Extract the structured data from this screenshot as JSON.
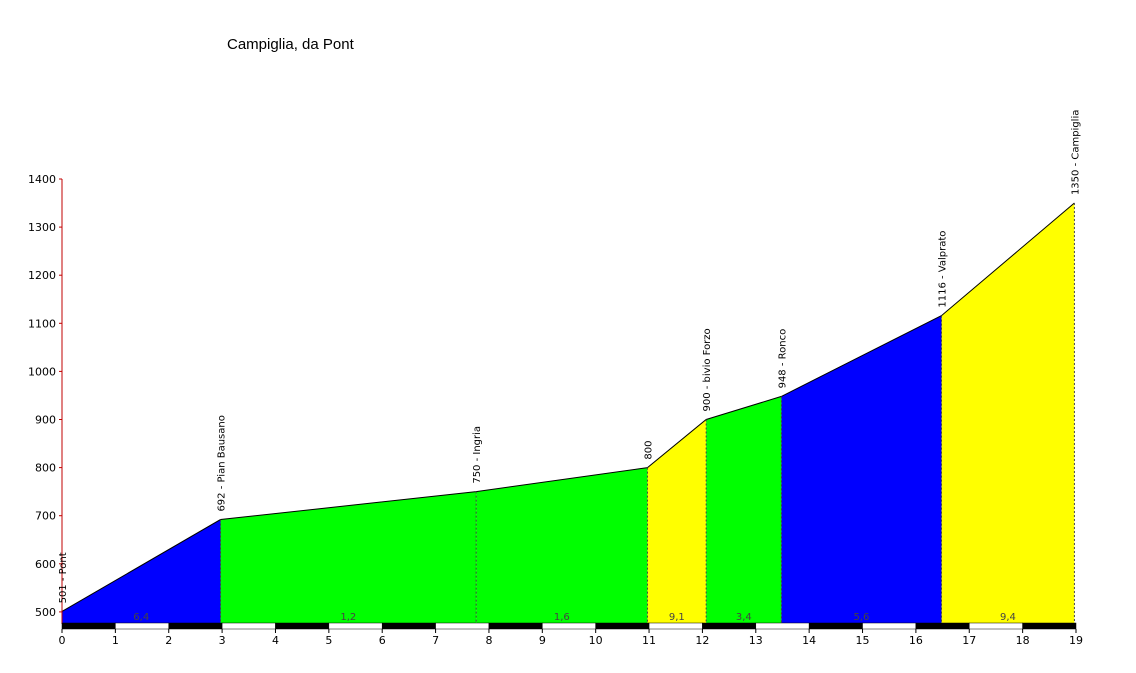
{
  "chart_data": {
    "type": "area",
    "title": "Campiglia, da Pont",
    "xlabel": "",
    "ylabel": "",
    "xlim": [
      0,
      19
    ],
    "ylim": [
      475,
      1400
    ],
    "x_ticks": [
      0,
      1,
      2,
      3,
      4,
      5,
      6,
      7,
      8,
      9,
      10,
      11,
      12,
      13,
      14,
      15,
      16,
      17,
      18,
      19
    ],
    "y_ticks": [
      500,
      600,
      700,
      800,
      900,
      1000,
      1100,
      1200,
      1300,
      1400
    ],
    "points": [
      {
        "x": 0,
        "y": 501,
        "label": "501 - Pont"
      },
      {
        "x": 2.97,
        "y": 692,
        "label": "692 - Pian Bausano"
      },
      {
        "x": 7.76,
        "y": 750,
        "label": "750 - Ingria"
      },
      {
        "x": 10.97,
        "y": 800,
        "label": "800"
      },
      {
        "x": 12.07,
        "y": 900,
        "label": "900 - bivio Forzo"
      },
      {
        "x": 13.48,
        "y": 948,
        "label": "948 - Ronco"
      },
      {
        "x": 16.48,
        "y": 1116,
        "label": "1116 - Valprato"
      },
      {
        "x": 18.97,
        "y": 1350,
        "label": "1350 - Campiglia"
      }
    ],
    "segments": [
      {
        "from": 0,
        "to": 2.97,
        "color": "#0000ff",
        "grade": "6,4"
      },
      {
        "from": 2.97,
        "to": 7.76,
        "color": "#00ff00",
        "grade": "1,2"
      },
      {
        "from": 7.76,
        "to": 10.97,
        "color": "#00ff00",
        "grade": "1,6"
      },
      {
        "from": 10.97,
        "to": 12.07,
        "color": "#ffff00",
        "grade": "9,1"
      },
      {
        "from": 12.07,
        "to": 13.48,
        "color": "#00ff00",
        "grade": "3,4"
      },
      {
        "from": 13.48,
        "to": 16.48,
        "color": "#0000ff",
        "grade": "5,6"
      },
      {
        "from": 16.48,
        "to": 18.97,
        "color": "#ffff00",
        "grade": "9,4"
      }
    ],
    "grid": false,
    "legend": "none"
  }
}
